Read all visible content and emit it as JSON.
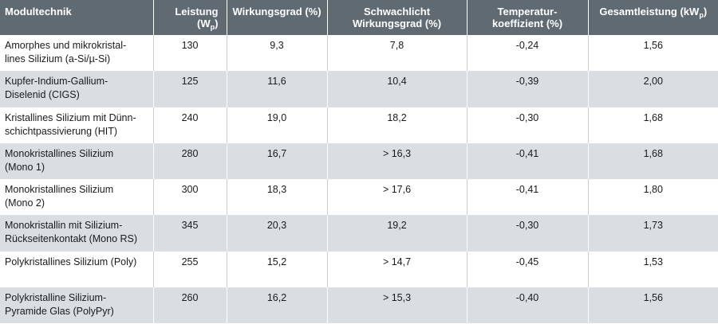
{
  "table": {
    "headers": [
      {
        "lines": [
          "Modultechnik"
        ]
      },
      {
        "lines": [
          "Leistung"
        ],
        "line2_prefix": "(W",
        "line2_sub": "p",
        "line2_suffix": ")"
      },
      {
        "lines": [
          "Wirkungsgrad (%)"
        ]
      },
      {
        "lines": [
          "Schwachlicht",
          "Wirkungsgrad (%)"
        ]
      },
      {
        "lines": [
          "Temperatur-",
          "koeffizient (%)"
        ]
      },
      {
        "prefix": "Gesamtleistung (kW",
        "sub": "p",
        "suffix": ")"
      }
    ],
    "rows": [
      [
        "Amorphes und mikrokristal-\nlines Silizium (a-Si/µ-Si)",
        "130",
        "9,3",
        "7,8",
        "-0,24",
        "1,56"
      ],
      [
        "Kupfer-Indium-Gallium-\nDiselenid (CIGS)",
        "125",
        "11,6",
        "10,4",
        "-0,39",
        "2,00"
      ],
      [
        "Kristallines Silizium mit Dünn-\nschichtpassivierung (HIT)",
        "240",
        "19,0",
        "18,2",
        "-0,30",
        "1,68"
      ],
      [
        "Monokristallines Silizium\n(Mono 1)",
        "280",
        "16,7",
        "> 16,3",
        "-0,41",
        "1,68"
      ],
      [
        "Monokristallines Silizium\n(Mono 2)",
        "300",
        "18,3",
        "> 17,6",
        "-0,41",
        "1,80"
      ],
      [
        "Monokristallin mit Silizium-\nRückseitenkontakt (Mono RS)",
        "345",
        "20,3",
        "19,2",
        "-0,30",
        "1,73"
      ],
      [
        "Polykristallines Silizium (Poly)",
        "255",
        "15,2",
        "> 14,7",
        "-0,45",
        "1,53"
      ],
      [
        "Polykristalline Silizium-\nPyramide Glas (PolyPyr)",
        "260",
        "16,2",
        "> 15,3",
        "-0,40",
        "1,56"
      ]
    ]
  }
}
